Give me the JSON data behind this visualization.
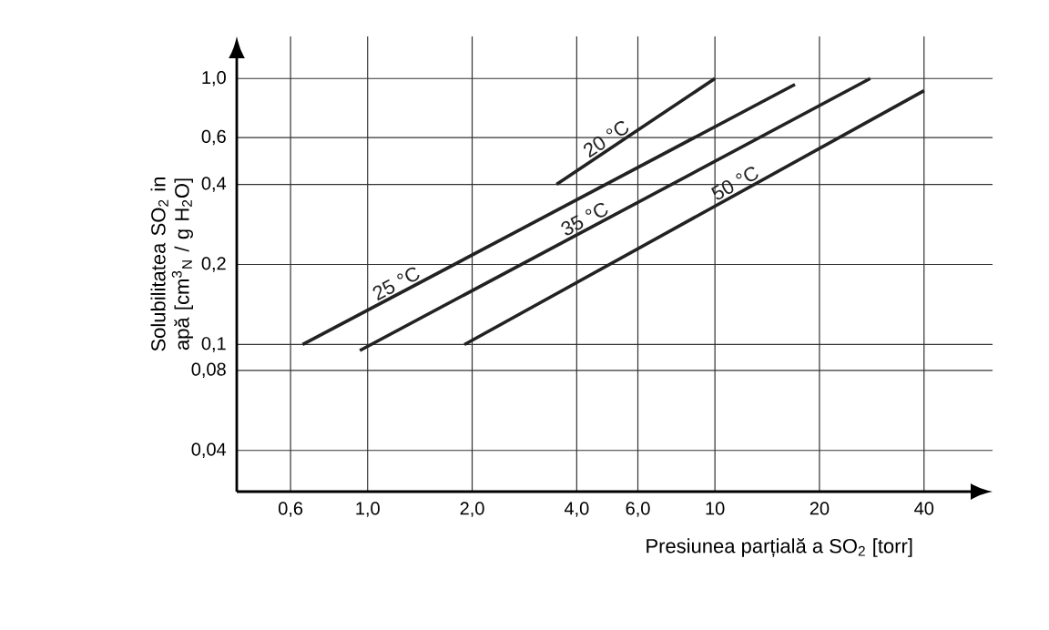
{
  "chart_data": {
    "type": "line",
    "xlabel": "Presiunea parțială a SO$_{2}$ [torr]",
    "ylabel": "Solubilitatea SO$_{2}$ in apă [cm$^{3}$$_{N}$ / g H$_{2}$O]",
    "log": "xy",
    "grid": true,
    "marker": "none",
    "line_style": "solid",
    "xlim": [
      0.42,
      63
    ],
    "ylim": [
      0.028,
      1.44
    ],
    "xticks": [
      {
        "value": 0.6,
        "label": "0,6"
      },
      {
        "value": 1.0,
        "label": "1,0"
      },
      {
        "value": 2.0,
        "label": "2,0"
      },
      {
        "value": 4.0,
        "label": "4,0"
      },
      {
        "value": 6.0,
        "label": "6,0"
      },
      10,
      20,
      40
    ],
    "yticks": [
      {
        "value": 0.04,
        "label": "0,04"
      },
      {
        "value": 0.08,
        "label": "0,08"
      },
      {
        "value": 0.1,
        "label": "0,1"
      },
      {
        "value": 0.2,
        "label": "0,2"
      },
      {
        "value": 0.4,
        "label": "0,4"
      },
      {
        "value": 0.6,
        "label": "0,6"
      },
      {
        "value": 1.0,
        "label": "1,0"
      }
    ],
    "series": [
      {
        "name": "20 °C",
        "color": "#222222",
        "x": [
          3.5,
          10
        ],
        "values": [
          0.4,
          1.0
        ]
      },
      {
        "name": "25 °C",
        "color": "#222222",
        "x": [
          0.65,
          17
        ],
        "values": [
          0.1,
          0.95
        ]
      },
      {
        "name": "35 °C",
        "color": "#222222",
        "x": [
          0.95,
          28
        ],
        "values": [
          0.095,
          1.0
        ]
      },
      {
        "name": "50 °C",
        "color": "#222222",
        "x": [
          1.9,
          40
        ],
        "values": [
          0.1,
          0.9
        ]
      }
    ]
  }
}
